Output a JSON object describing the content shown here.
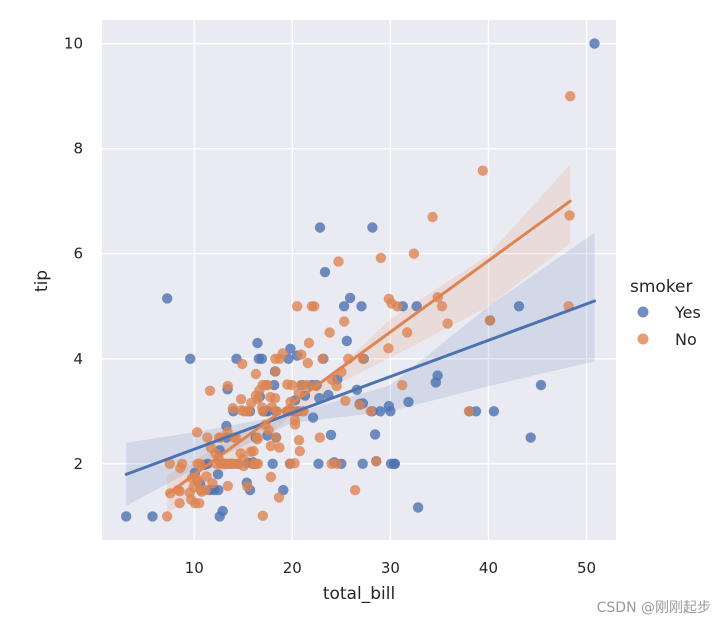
{
  "chart_data": {
    "type": "scatter",
    "title": "",
    "xlabel": "total_bill",
    "ylabel": "tip",
    "xlim": [
      0.6,
      53.0
    ],
    "ylim": [
      0.55,
      10.45
    ],
    "xticks": [
      10,
      20,
      30,
      40,
      50
    ],
    "yticks": [
      2,
      4,
      6,
      8,
      10
    ],
    "grid": true,
    "legend": {
      "title": "smoker",
      "position": "right"
    },
    "series": [
      {
        "name": "Yes",
        "color": "#4c72b0",
        "regression": {
          "x0": 3.07,
          "y0": 1.8,
          "x1": 50.81,
          "y1": 5.1
        },
        "ci_band": {
          "x": [
            3.07,
            10,
            20,
            30,
            40,
            50.81
          ],
          "lower": [
            1.2,
            1.9,
            2.78,
            3.0,
            3.48,
            3.95
          ],
          "upper": [
            2.4,
            2.6,
            2.95,
            3.5,
            5.0,
            6.4
          ]
        },
        "points": [
          [
            3.07,
            1.0
          ],
          [
            5.75,
            1.0
          ],
          [
            7.25,
            5.15
          ],
          [
            9.6,
            4.0
          ],
          [
            10.07,
            1.83
          ],
          [
            10.59,
            1.61
          ],
          [
            11.02,
            1.98
          ],
          [
            11.38,
            2.0
          ],
          [
            11.59,
            1.5
          ],
          [
            12.03,
            1.5
          ],
          [
            12.43,
            1.8
          ],
          [
            12.46,
            1.5
          ],
          [
            12.6,
            1.0
          ],
          [
            12.9,
            1.1
          ],
          [
            13.0,
            2.0
          ],
          [
            13.27,
            2.5
          ],
          [
            13.28,
            2.72
          ],
          [
            13.81,
            2.0
          ],
          [
            14.0,
            3.0
          ],
          [
            14.31,
            4.0
          ],
          [
            14.48,
            2.0
          ],
          [
            15.36,
            1.64
          ],
          [
            15.48,
            2.02
          ],
          [
            15.69,
            1.5
          ],
          [
            15.69,
            3.0
          ],
          [
            15.98,
            2.03
          ],
          [
            16.0,
            2.0
          ],
          [
            16.27,
            2.5
          ],
          [
            16.45,
            4.3
          ],
          [
            16.58,
            4.0
          ],
          [
            16.9,
            4.0
          ],
          [
            17.07,
            3.0
          ],
          [
            17.29,
            3.0
          ],
          [
            17.46,
            2.54
          ],
          [
            17.51,
            3.0
          ],
          [
            18.15,
            3.5
          ],
          [
            18.24,
            3.76
          ],
          [
            18.29,
            3.0
          ],
          [
            18.35,
            2.5
          ],
          [
            19.08,
            1.5
          ],
          [
            19.5,
            3.0
          ],
          [
            19.6,
            4.0
          ],
          [
            19.77,
            2.0
          ],
          [
            19.81,
            4.19
          ],
          [
            20.08,
            3.0
          ],
          [
            20.29,
            3.21
          ],
          [
            20.49,
            4.06
          ],
          [
            20.6,
            3.0
          ],
          [
            21.01,
            3.5
          ],
          [
            22.0,
            3.5
          ],
          [
            22.12,
            2.88
          ],
          [
            22.49,
            3.5
          ],
          [
            22.67,
            2.0
          ],
          [
            22.75,
            3.25
          ],
          [
            22.82,
            6.5
          ],
          [
            23.33,
            5.65
          ],
          [
            23.17,
            4.0
          ],
          [
            23.68,
            3.31
          ],
          [
            23.95,
            2.55
          ],
          [
            24.27,
            2.03
          ],
          [
            24.59,
            3.61
          ],
          [
            25.0,
            2.0
          ],
          [
            25.28,
            5.0
          ],
          [
            25.56,
            4.34
          ],
          [
            25.89,
            5.16
          ],
          [
            26.59,
            3.41
          ],
          [
            26.86,
            3.14
          ],
          [
            27.05,
            5.0
          ],
          [
            27.18,
            2.0
          ],
          [
            27.28,
            4.0
          ],
          [
            28.15,
            3.0
          ],
          [
            28.17,
            6.5
          ],
          [
            28.44,
            2.56
          ],
          [
            28.55,
            2.05
          ],
          [
            28.97,
            3.0
          ],
          [
            30.06,
            2.0
          ],
          [
            30.4,
            2.0
          ],
          [
            30.46,
            2.0
          ],
          [
            31.27,
            5.0
          ],
          [
            31.85,
            3.18
          ],
          [
            32.68,
            5.0
          ],
          [
            32.83,
            1.17
          ],
          [
            34.63,
            3.55
          ],
          [
            34.81,
            3.68
          ],
          [
            38.07,
            3.0
          ],
          [
            38.73,
            3.0
          ],
          [
            40.55,
            3.0
          ],
          [
            43.11,
            5.0
          ],
          [
            44.3,
            2.5
          ],
          [
            45.35,
            3.5
          ],
          [
            50.81,
            10.0
          ],
          [
            30.0,
            3.0
          ],
          [
            29.85,
            3.1
          ],
          [
            27.2,
            3.15
          ],
          [
            40.15,
            4.73
          ],
          [
            16.7,
            3.28
          ],
          [
            13.4,
            3.42
          ],
          [
            12.6,
            2.26
          ],
          [
            18.0,
            2.0
          ],
          [
            21.3,
            3.3
          ]
        ]
      },
      {
        "name": "No",
        "color": "#dd8452",
        "regression": {
          "x0": 7.25,
          "y0": 1.42,
          "x1": 48.33,
          "y1": 7.0
        },
        "ci_band": {
          "x": [
            7.25,
            15,
            20,
            25,
            30,
            40,
            48.33
          ],
          "lower": [
            1.05,
            2.12,
            2.93,
            3.55,
            4.02,
            5.0,
            6.2
          ],
          "upper": [
            1.78,
            2.6,
            3.14,
            3.88,
            4.75,
            5.98,
            7.7
          ]
        },
        "points": [
          [
            7.25,
            1.0
          ],
          [
            7.51,
            2.0
          ],
          [
            7.56,
            1.44
          ],
          [
            8.35,
            1.5
          ],
          [
            8.51,
            1.25
          ],
          [
            8.52,
            1.48
          ],
          [
            8.58,
            1.92
          ],
          [
            8.77,
            2.0
          ],
          [
            9.55,
            1.45
          ],
          [
            9.68,
            1.32
          ],
          [
            9.78,
            1.73
          ],
          [
            9.94,
            1.56
          ],
          [
            10.07,
            1.25
          ],
          [
            10.27,
            1.71
          ],
          [
            10.29,
            2.6
          ],
          [
            10.33,
            1.67
          ],
          [
            10.34,
            2.0
          ],
          [
            10.51,
            1.25
          ],
          [
            10.63,
            2.0
          ],
          [
            10.65,
            1.5
          ],
          [
            10.77,
            1.47
          ],
          [
            11.17,
            1.5
          ],
          [
            11.24,
            1.76
          ],
          [
            11.35,
            2.5
          ],
          [
            11.61,
            3.39
          ],
          [
            11.69,
            2.31
          ],
          [
            11.87,
            1.63
          ],
          [
            12.16,
            2.2
          ],
          [
            12.26,
            2.0
          ],
          [
            12.54,
            2.5
          ],
          [
            12.66,
            2.5
          ],
          [
            12.69,
            2.0
          ],
          [
            12.74,
            2.01
          ],
          [
            13.03,
            2.0
          ],
          [
            13.13,
            2.0
          ],
          [
            13.37,
            2.0
          ],
          [
            13.39,
            2.61
          ],
          [
            13.42,
            3.48
          ],
          [
            13.42,
            1.58
          ],
          [
            13.51,
            2.0
          ],
          [
            13.81,
            2.0
          ],
          [
            13.94,
            3.06
          ],
          [
            14.07,
            2.5
          ],
          [
            14.15,
            2.0
          ],
          [
            14.26,
            2.5
          ],
          [
            14.52,
            2.0
          ],
          [
            14.73,
            2.2
          ],
          [
            14.78,
            3.23
          ],
          [
            14.83,
            3.02
          ],
          [
            15.01,
            2.09
          ],
          [
            15.04,
            1.96
          ],
          [
            15.06,
            3.0
          ],
          [
            15.38,
            3.0
          ],
          [
            15.42,
            1.57
          ],
          [
            15.53,
            3.0
          ],
          [
            15.77,
            2.23
          ],
          [
            15.81,
            3.16
          ],
          [
            15.95,
            2.0
          ],
          [
            16.04,
            2.24
          ],
          [
            16.21,
            2.0
          ],
          [
            16.29,
            3.71
          ],
          [
            16.31,
            2.0
          ],
          [
            16.4,
            2.5
          ],
          [
            16.45,
            2.47
          ],
          [
            16.47,
            3.23
          ],
          [
            16.49,
            2.0
          ],
          [
            16.66,
            3.4
          ],
          [
            16.93,
            3.07
          ],
          [
            16.97,
            3.5
          ],
          [
            16.99,
            1.01
          ],
          [
            17.26,
            2.74
          ],
          [
            17.31,
            3.5
          ],
          [
            17.47,
            3.5
          ],
          [
            17.59,
            2.64
          ],
          [
            17.78,
            3.27
          ],
          [
            17.81,
            2.34
          ],
          [
            17.82,
            1.75
          ],
          [
            17.92,
            3.08
          ],
          [
            18.26,
            3.25
          ],
          [
            18.28,
            4.0
          ],
          [
            18.29,
            3.76
          ],
          [
            18.35,
            2.5
          ],
          [
            18.43,
            3.0
          ],
          [
            18.64,
            1.36
          ],
          [
            18.69,
            2.31
          ],
          [
            18.71,
            4.0
          ],
          [
            19.44,
            3.0
          ],
          [
            19.49,
            3.51
          ],
          [
            19.65,
            3.0
          ],
          [
            19.77,
            2.0
          ],
          [
            19.82,
            3.18
          ],
          [
            19.97,
            3.5
          ],
          [
            20.23,
            2.01
          ],
          [
            20.27,
            2.83
          ],
          [
            20.29,
            2.75
          ],
          [
            20.45,
            3.0
          ],
          [
            20.65,
            3.35
          ],
          [
            20.69,
            2.45
          ],
          [
            20.76,
            2.24
          ],
          [
            20.9,
            3.5
          ],
          [
            20.92,
            4.08
          ],
          [
            21.01,
            3.0
          ],
          [
            21.16,
            3.0
          ],
          [
            21.5,
            3.5
          ],
          [
            21.58,
            3.92
          ],
          [
            21.7,
            4.3
          ],
          [
            22.23,
            5.0
          ],
          [
            22.42,
            3.48
          ],
          [
            23.1,
            4.0
          ],
          [
            24.01,
            2.0
          ],
          [
            24.06,
            3.6
          ],
          [
            24.52,
            3.48
          ],
          [
            24.55,
            2.0
          ],
          [
            24.71,
            5.85
          ],
          [
            25.0,
            3.75
          ],
          [
            25.29,
            4.71
          ],
          [
            25.71,
            4.0
          ],
          [
            26.88,
            3.12
          ],
          [
            27.2,
            4.0
          ],
          [
            28.55,
            2.05
          ],
          [
            29.03,
            5.92
          ],
          [
            29.8,
            4.2
          ],
          [
            29.85,
            5.14
          ],
          [
            30.14,
            5.05
          ],
          [
            31.71,
            4.5
          ],
          [
            32.4,
            6.0
          ],
          [
            34.3,
            6.7
          ],
          [
            34.83,
            5.17
          ],
          [
            35.26,
            5.0
          ],
          [
            35.83,
            4.67
          ],
          [
            38.01,
            3.0
          ],
          [
            39.42,
            7.58
          ],
          [
            40.17,
            4.73
          ],
          [
            48.17,
            5.0
          ],
          [
            48.27,
            6.73
          ],
          [
            48.33,
            9.0
          ],
          [
            20.5,
            5.0
          ],
          [
            22.0,
            5.0
          ],
          [
            23.8,
            4.5
          ],
          [
            26.4,
            1.5
          ],
          [
            30.7,
            5.0
          ],
          [
            31.2,
            3.5
          ],
          [
            25.4,
            3.2
          ],
          [
            19.0,
            4.1
          ],
          [
            17.0,
            3.0
          ],
          [
            12.5,
            2.1
          ],
          [
            14.9,
            3.9
          ],
          [
            16.3,
            3.3
          ],
          [
            22.8,
            2.5
          ],
          [
            28.0,
            3.0
          ]
        ]
      }
    ]
  },
  "watermark": "CSDN @刚刚起步"
}
